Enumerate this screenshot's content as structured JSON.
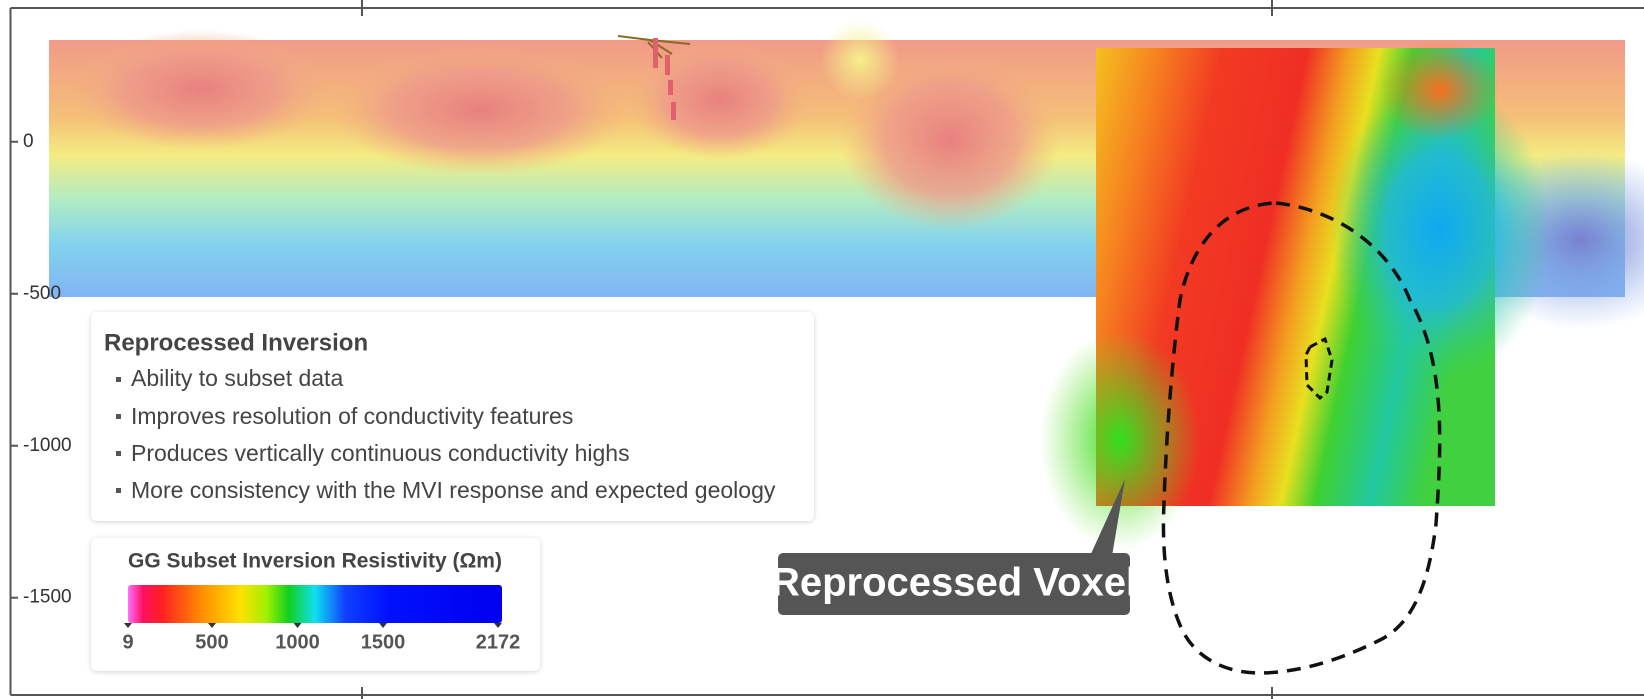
{
  "axis": {
    "ylim": [
      440,
      -1820
    ],
    "yticks": [
      0,
      -500,
      -1000,
      -1500
    ]
  },
  "textbox": {
    "title": "Reprocessed Inversion",
    "bullets": [
      "Ability to subset data",
      "Improves resolution of conductivity features",
      "Produces vertically continuous conductivity highs",
      "More consistency with the MVI response and expected geology"
    ]
  },
  "colorbar": {
    "title": "GG Subset Inversion Resistivity (Ωm)",
    "clim": [
      9,
      2172
    ],
    "ticks": [
      9,
      500,
      1000,
      1500,
      2172
    ]
  },
  "callout": {
    "label": "Reprocessed Voxel"
  }
}
